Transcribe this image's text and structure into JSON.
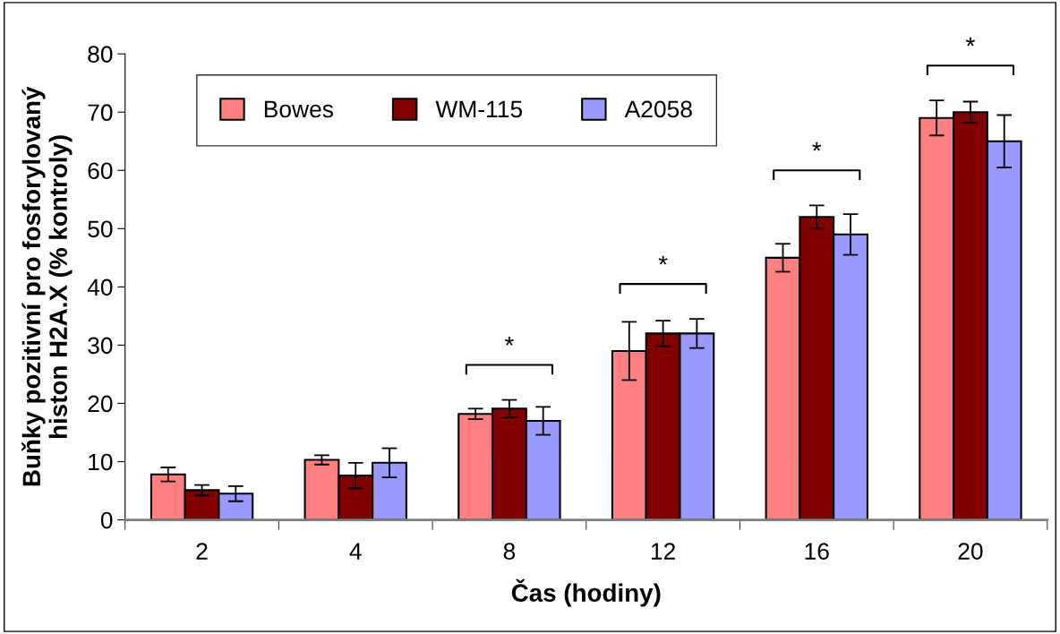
{
  "chart_data": {
    "type": "bar",
    "xlabel": "Čas (hodiny)",
    "ylabel": "Buňky pozitivní pro fosforylovaný\nhiston H2A.X (% kontroly)",
    "categories": [
      "2",
      "4",
      "8",
      "12",
      "16",
      "20"
    ],
    "series": [
      {
        "name": "Bowes",
        "color": "#ff8080",
        "values": [
          7.8,
          10.3,
          18.2,
          29,
          45,
          69
        ],
        "errors": [
          1.2,
          0.8,
          0.9,
          5,
          2.4,
          3
        ]
      },
      {
        "name": "WM-115",
        "color": "#800000",
        "values": [
          5.1,
          7.6,
          19.1,
          32,
          52,
          70
        ],
        "errors": [
          0.9,
          2.2,
          1.5,
          2.2,
          2,
          1.8
        ]
      },
      {
        "name": "A2058",
        "color": "#9999ff",
        "values": [
          4.5,
          9.8,
          17,
          32,
          49,
          65
        ],
        "errors": [
          1.3,
          2.5,
          2.4,
          2.5,
          3.5,
          4.5
        ]
      }
    ],
    "annotations": [
      "*",
      "*",
      "*",
      "*"
    ],
    "ylim": [
      0,
      80
    ],
    "yticks": [
      0,
      10,
      20,
      30,
      40,
      50,
      60,
      70,
      80
    ],
    "grid": false,
    "legend": "top left"
  }
}
